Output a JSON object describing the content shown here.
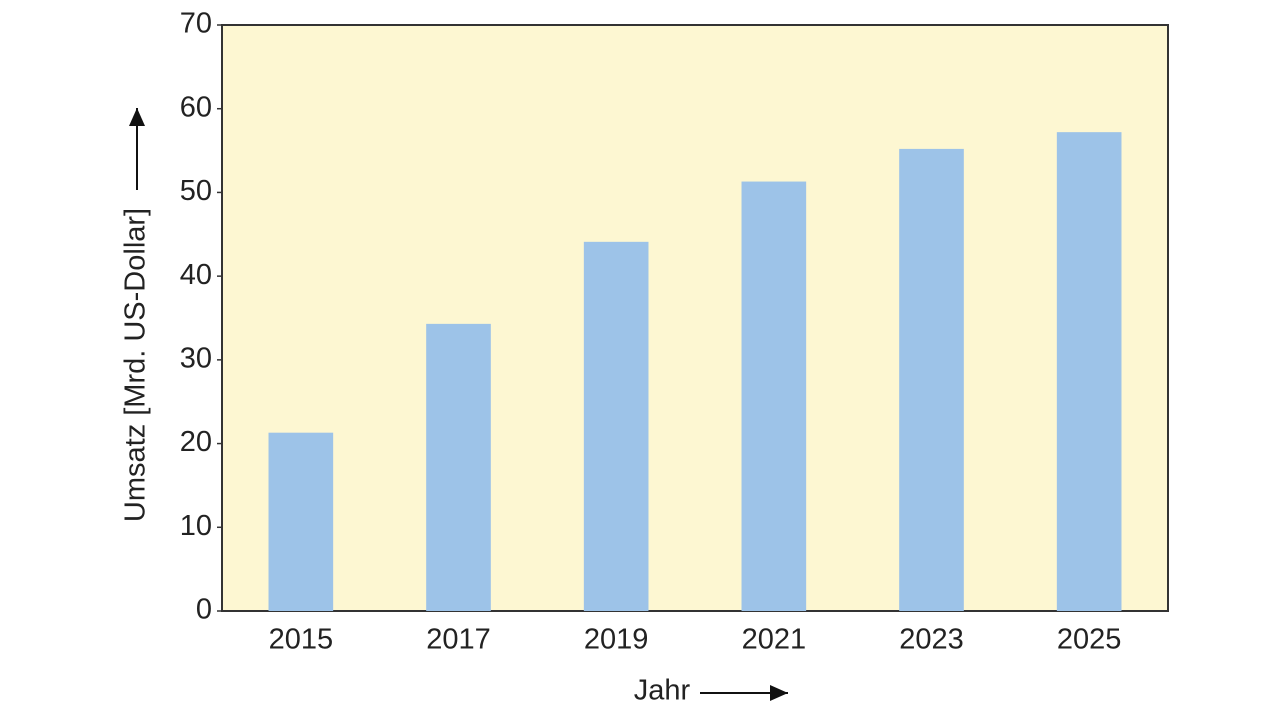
{
  "chart_data": {
    "type": "bar",
    "x_label": "Jahr",
    "y_label": "Umsatz [Mrd. US-Dollar]",
    "categories": [
      "2015",
      "2017",
      "2019",
      "2021",
      "2023",
      "2025"
    ],
    "values": [
      21.3,
      34.3,
      44.1,
      51.3,
      55.2,
      57.2
    ],
    "color": "#9dc3e8",
    "background": "#fdf7d2",
    "ylim": [
      0,
      70
    ],
    "yticks": [
      0,
      10,
      20,
      30,
      40,
      50,
      60,
      70
    ],
    "grid": false
  }
}
